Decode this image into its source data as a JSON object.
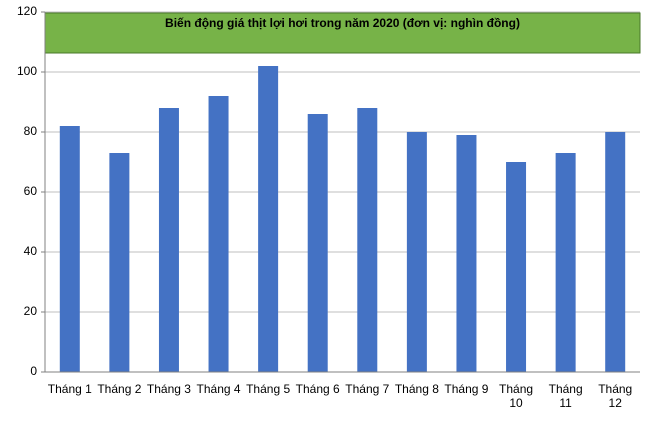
{
  "chart_data": {
    "type": "bar",
    "title": "Biến động giá thịt lợi hơi trong năm 2020  (đơn vị: nghìn đồng)",
    "categories": [
      "Tháng  1",
      "Tháng  2",
      "Tháng  3",
      "Tháng  4",
      "Tháng  5",
      "Tháng  6",
      "Tháng  7",
      "Tháng  8",
      "Tháng  9",
      "Tháng 10",
      "Tháng 11",
      "Tháng 12"
    ],
    "values": [
      82,
      73,
      88,
      92,
      102,
      86,
      88,
      80,
      79,
      70,
      73,
      80
    ],
    "color": "#4472c4",
    "ylim": [
      0,
      120
    ],
    "yticks": [
      0,
      20,
      40,
      60,
      80,
      100,
      120
    ],
    "grid": true
  }
}
